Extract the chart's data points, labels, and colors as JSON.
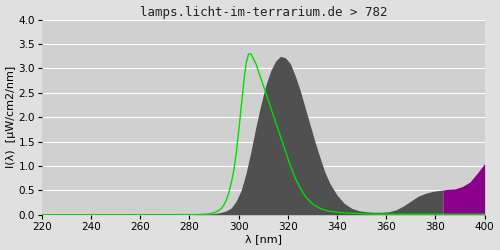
{
  "title": "lamps.licht-im-terrarium.de > 782",
  "xlabel": "λ [nm]",
  "ylabel": "I(λ)  [μW/cm2/nm]",
  "xlim": [
    220,
    400
  ],
  "ylim": [
    0.0,
    4.0
  ],
  "xticks": [
    220,
    240,
    260,
    280,
    300,
    320,
    340,
    360,
    380,
    400
  ],
  "yticks": [
    0.0,
    0.5,
    1.0,
    1.5,
    2.0,
    2.5,
    3.0,
    3.5,
    4.0
  ],
  "bg_color": "#e0e0e0",
  "plot_bg_color": "#d0d0d0",
  "spectrum_wl": [
    220,
    280,
    286,
    289,
    291,
    293,
    295,
    297,
    299,
    301,
    303,
    305,
    307,
    309,
    311,
    313,
    315,
    317,
    319,
    321,
    323,
    325,
    327,
    329,
    331,
    333,
    335,
    337,
    340,
    343,
    346,
    349,
    352,
    355,
    358,
    361,
    364,
    367,
    370,
    373,
    376,
    379,
    382,
    385,
    388,
    391,
    394,
    397,
    400
  ],
  "spectrum_vals": [
    0,
    0,
    0.01,
    0.02,
    0.03,
    0.05,
    0.08,
    0.14,
    0.28,
    0.5,
    0.85,
    1.3,
    1.8,
    2.25,
    2.65,
    2.95,
    3.15,
    3.25,
    3.22,
    3.1,
    2.85,
    2.55,
    2.2,
    1.85,
    1.5,
    1.18,
    0.88,
    0.65,
    0.4,
    0.23,
    0.13,
    0.08,
    0.06,
    0.05,
    0.05,
    0.06,
    0.1,
    0.18,
    0.28,
    0.38,
    0.44,
    0.48,
    0.5,
    0.52,
    0.53,
    0.58,
    0.67,
    0.85,
    1.05
  ],
  "green_wl": [
    220,
    280,
    283,
    286,
    288,
    290,
    291,
    292,
    293,
    294,
    295,
    296,
    297,
    298,
    299,
    300,
    301,
    302,
    303,
    304,
    305,
    307,
    309,
    311,
    313,
    315,
    317,
    319,
    321,
    323,
    325,
    327,
    330,
    333,
    336,
    340,
    345,
    350,
    355,
    360,
    370,
    380,
    390,
    400
  ],
  "green_vals": [
    0,
    0,
    0,
    0.01,
    0.02,
    0.04,
    0.06,
    0.09,
    0.13,
    0.2,
    0.3,
    0.45,
    0.65,
    0.9,
    1.25,
    1.7,
    2.2,
    2.7,
    3.1,
    3.3,
    3.3,
    3.1,
    2.8,
    2.5,
    2.2,
    1.9,
    1.6,
    1.3,
    1.0,
    0.75,
    0.55,
    0.38,
    0.22,
    0.13,
    0.08,
    0.05,
    0.03,
    0.02,
    0.01,
    0.01,
    0.01,
    0.01,
    0.01,
    0.01
  ],
  "color_transition": 383,
  "gray_color": "#505050",
  "purple_color": "#8b008b",
  "green_color": "#00dd00",
  "title_color": "#222222",
  "title_fontsize": 9,
  "axis_label_fontsize": 8,
  "tick_fontsize": 7.5
}
